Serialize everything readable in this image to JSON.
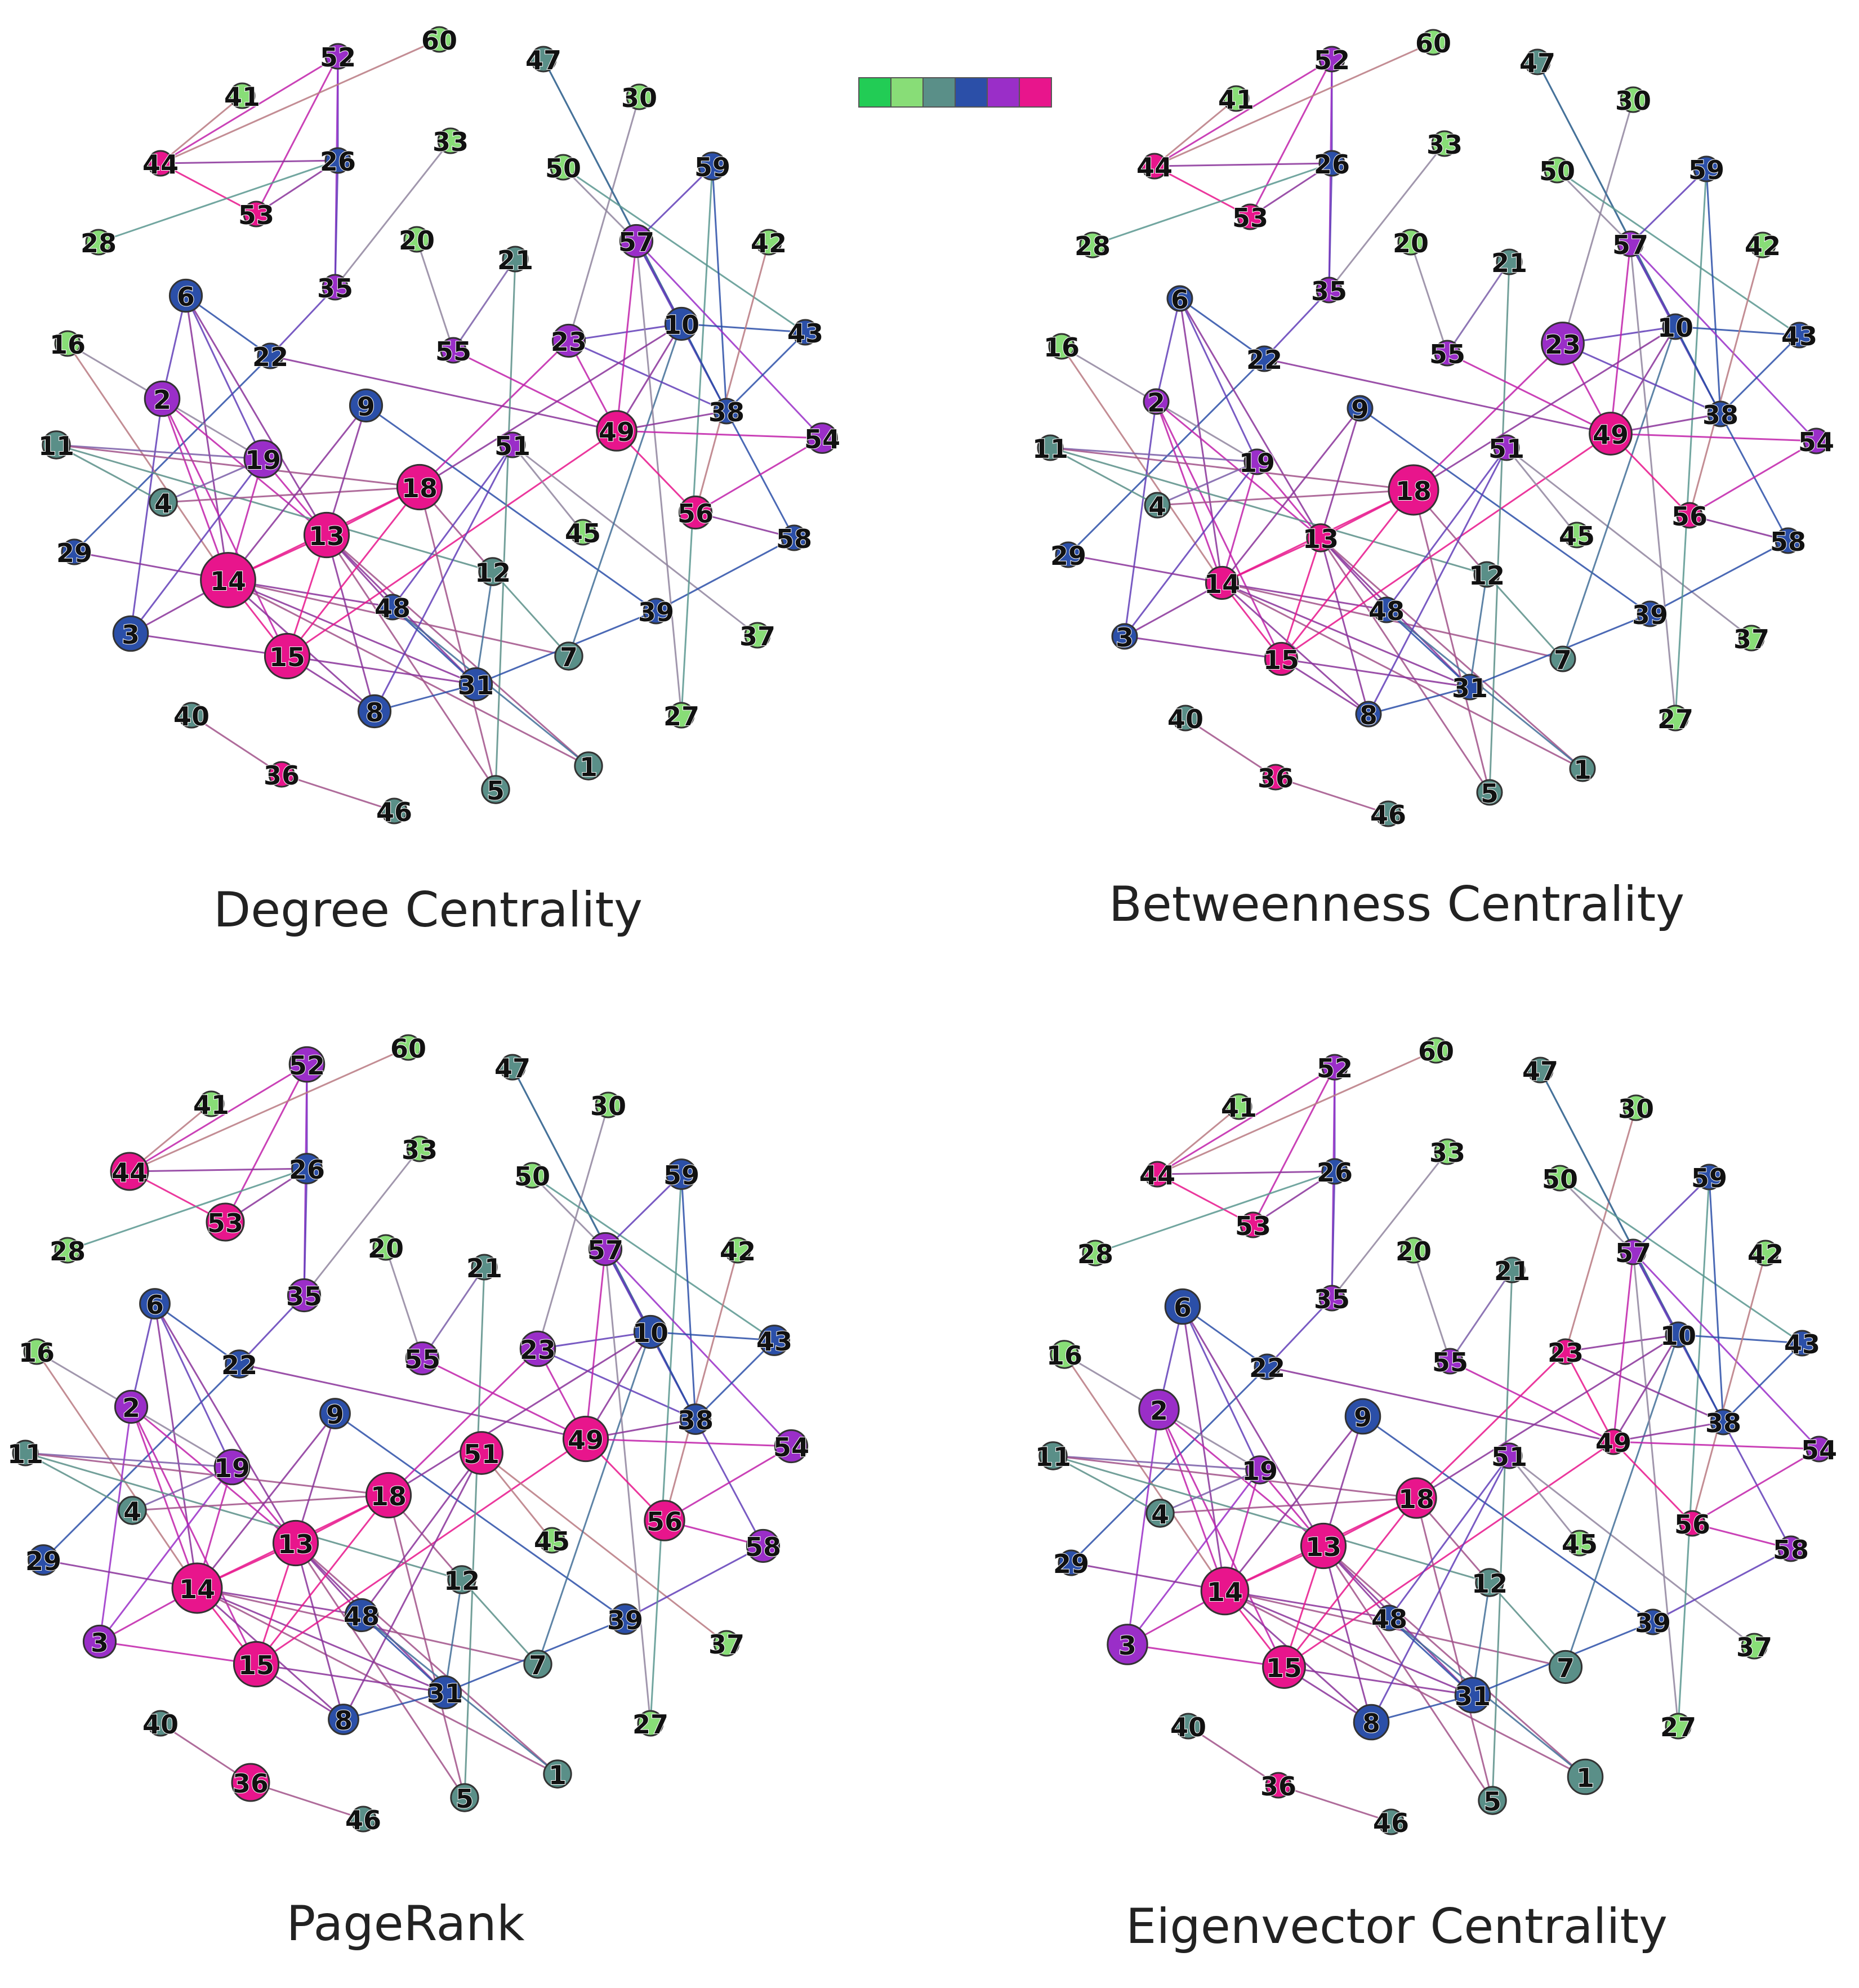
{
  "color_scale": [
    "#22cc55",
    "#88dd77",
    "#5a8f88",
    "#2b4fa8",
    "#9a2ec8",
    "#e8158c"
  ],
  "panels": [
    {
      "caption": "Degree Centrality",
      "node_scores": {
        "13": 5,
        "14": 5,
        "15": 5,
        "18": 5,
        "49": 5,
        "56": 5,
        "36": 5,
        "44": 5,
        "53": 5,
        "52": 4,
        "2": 4,
        "19": 4,
        "23": 4,
        "57": 4,
        "55": 4,
        "51": 4,
        "54": 4,
        "3": 3,
        "10": 3,
        "29": 3,
        "48": 3,
        "58": 3,
        "35": 4,
        "31": 3,
        "8": 3,
        "59": 3,
        "43": 3,
        "9": 3,
        "6": 3,
        "22": 3,
        "26": 3,
        "38": 3,
        "39": 3,
        "12": 2,
        "7": 2,
        "1": 2,
        "5": 2,
        "4": 2,
        "11": 2,
        "45": 1,
        "50": 1,
        "37": 1,
        "27": 1,
        "40": 2,
        "46": 2,
        "28": 1,
        "41": 1,
        "60": 1,
        "47": 2,
        "30": 1,
        "33": 1,
        "20": 1,
        "21": 2,
        "42": 1,
        "16": 1
      },
      "big_nodes": {
        "14": 2.2,
        "13": 1.8,
        "18": 1.8,
        "15": 1.8,
        "49": 1.6,
        "56": 1.3,
        "19": 1.5,
        "2": 1.4,
        "23": 1.3,
        "10": 1.3,
        "57": 1.3,
        "3": 1.4,
        "6": 1.3,
        "9": 1.3,
        "8": 1.3,
        "31": 1.3,
        "54": 1.2,
        "59": 1.1,
        "1": 1.1,
        "7": 1.1,
        "5": 1.1,
        "12": 1.1,
        "4": 1.1,
        "11": 1.1
      }
    },
    {
      "caption": "Betweenness Centrality",
      "node_scores": {
        "18": 5,
        "49": 5,
        "14": 5,
        "15": 5,
        "13": 5,
        "56": 5,
        "36": 5,
        "53": 5,
        "44": 5,
        "23": 4,
        "52": 4,
        "2": 4,
        "57": 4,
        "55": 4,
        "51": 4,
        "19": 4,
        "35": 4,
        "54": 4,
        "10": 3,
        "3": 3,
        "29": 3,
        "48": 3,
        "58": 3,
        "31": 3,
        "8": 3,
        "59": 3,
        "43": 3,
        "9": 3,
        "6": 3,
        "22": 3,
        "26": 3,
        "38": 3,
        "39": 3,
        "12": 2,
        "7": 2,
        "1": 2,
        "5": 2,
        "4": 2,
        "11": 2,
        "45": 1,
        "50": 1,
        "37": 1,
        "27": 1,
        "40": 2,
        "46": 2,
        "28": 1,
        "41": 1,
        "60": 1,
        "47": 2,
        "30": 1,
        "33": 1,
        "20": 1,
        "21": 2,
        "42": 1,
        "16": 1
      },
      "big_nodes": {
        "18": 2.0,
        "23": 1.7,
        "49": 1.7,
        "14": 1.3,
        "15": 1.3,
        "13": 1.1
      }
    },
    {
      "caption": "PageRank",
      "node_scores": {
        "14": 5,
        "13": 5,
        "15": 5,
        "18": 5,
        "49": 5,
        "51": 5,
        "56": 5,
        "36": 5,
        "53": 5,
        "44": 5,
        "52": 4,
        "2": 4,
        "19": 4,
        "23": 4,
        "57": 4,
        "55": 4,
        "54": 4,
        "35": 4,
        "58": 4,
        "3": 4,
        "29": 3,
        "10": 3,
        "48": 3,
        "31": 3,
        "8": 3,
        "59": 3,
        "43": 3,
        "9": 3,
        "6": 3,
        "22": 3,
        "26": 3,
        "38": 3,
        "39": 3,
        "12": 2,
        "7": 2,
        "1": 2,
        "5": 2,
        "4": 2,
        "11": 2,
        "45": 1,
        "50": 1,
        "37": 1,
        "27": 1,
        "40": 2,
        "46": 2,
        "28": 1,
        "41": 1,
        "60": 1,
        "47": 2,
        "30": 1,
        "33": 1,
        "20": 1,
        "21": 2,
        "42": 1,
        "16": 1
      },
      "big_nodes": {
        "14": 2.0,
        "13": 1.8,
        "18": 1.8,
        "15": 1.8,
        "49": 1.8,
        "51": 1.7,
        "56": 1.6,
        "36": 1.5,
        "53": 1.5,
        "44": 1.5,
        "52": 1.4,
        "2": 1.3,
        "19": 1.4,
        "23": 1.4,
        "57": 1.3,
        "55": 1.3,
        "54": 1.3,
        "35": 1.3,
        "58": 1.3,
        "3": 1.3,
        "29": 1.2,
        "10": 1.3,
        "48": 1.3,
        "31": 1.3,
        "8": 1.2,
        "59": 1.2,
        "43": 1.2,
        "9": 1.2,
        "6": 1.2,
        "22": 1.1,
        "26": 1.2,
        "38": 1.2,
        "39": 1.2,
        "12": 1.1,
        "7": 1.1,
        "1": 1.1,
        "5": 1.1,
        "4": 1.1,
        "11": 1.0
      }
    },
    {
      "caption": "Eigenvector Centrality",
      "node_scores": {
        "14": 5,
        "13": 5,
        "15": 5,
        "18": 5,
        "49": 5,
        "56": 5,
        "36": 5,
        "53": 5,
        "44": 5,
        "23": 5,
        "52": 4,
        "2": 4,
        "19": 4,
        "57": 4,
        "55": 4,
        "51": 4,
        "54": 4,
        "35": 4,
        "58": 4,
        "3": 4,
        "29": 3,
        "10": 3,
        "48": 3,
        "31": 3,
        "8": 3,
        "59": 3,
        "43": 3,
        "9": 3,
        "6": 3,
        "22": 3,
        "26": 3,
        "38": 3,
        "39": 3,
        "12": 2,
        "7": 2,
        "1": 2,
        "5": 2,
        "4": 2,
        "11": 2,
        "45": 1,
        "50": 1,
        "37": 1,
        "27": 1,
        "40": 2,
        "46": 2,
        "28": 1,
        "41": 1,
        "60": 1,
        "47": 2,
        "30": 1,
        "33": 1,
        "20": 1,
        "21": 2,
        "42": 1,
        "16": 1
      },
      "big_nodes": {
        "14": 1.9,
        "13": 1.8,
        "15": 1.7,
        "18": 1.6,
        "3": 1.6,
        "2": 1.6,
        "6": 1.4,
        "9": 1.4,
        "8": 1.4,
        "31": 1.4,
        "1": 1.4,
        "7": 1.3,
        "5": 1.1,
        "12": 1.1,
        "16": 1.1,
        "4": 1.1,
        "11": 1.1,
        "19": 1.1
      }
    }
  ],
  "node_ids": [
    "1",
    "2",
    "3",
    "4",
    "5",
    "6",
    "7",
    "8",
    "9",
    "10",
    "11",
    "12",
    "13",
    "14",
    "15",
    "16",
    "18",
    "19",
    "20",
    "21",
    "22",
    "23",
    "26",
    "27",
    "28",
    "29",
    "30",
    "31",
    "33",
    "35",
    "36",
    "37",
    "38",
    "39",
    "40",
    "41",
    "42",
    "43",
    "44",
    "45",
    "46",
    "47",
    "48",
    "49",
    "50",
    "51",
    "52",
    "53",
    "54",
    "55",
    "56",
    "57",
    "58",
    "59",
    "60"
  ],
  "edges": [
    [
      "52",
      "44"
    ],
    [
      "52",
      "53"
    ],
    [
      "52",
      "26"
    ],
    [
      "52",
      "35"
    ],
    [
      "60",
      "44"
    ],
    [
      "41",
      "44"
    ],
    [
      "44",
      "26"
    ],
    [
      "44",
      "53"
    ],
    [
      "53",
      "26"
    ],
    [
      "26",
      "35"
    ],
    [
      "28",
      "26"
    ],
    [
      "35",
      "22"
    ],
    [
      "22",
      "29"
    ],
    [
      "33",
      "35"
    ],
    [
      "6",
      "2"
    ],
    [
      "6",
      "19"
    ],
    [
      "6",
      "13"
    ],
    [
      "6",
      "14"
    ],
    [
      "16",
      "14"
    ],
    [
      "16",
      "19"
    ],
    [
      "2",
      "3"
    ],
    [
      "2",
      "14"
    ],
    [
      "2",
      "15"
    ],
    [
      "2",
      "13"
    ],
    [
      "11",
      "19"
    ],
    [
      "11",
      "4"
    ],
    [
      "11",
      "18"
    ],
    [
      "11",
      "12"
    ],
    [
      "19",
      "4"
    ],
    [
      "19",
      "3"
    ],
    [
      "19",
      "14"
    ],
    [
      "19",
      "13"
    ],
    [
      "4",
      "18"
    ],
    [
      "29",
      "14"
    ],
    [
      "9",
      "14"
    ],
    [
      "9",
      "13"
    ],
    [
      "9",
      "39"
    ],
    [
      "3",
      "14"
    ],
    [
      "3",
      "15"
    ],
    [
      "14",
      "13"
    ],
    [
      "14",
      "15"
    ],
    [
      "14",
      "8"
    ],
    [
      "14",
      "31"
    ],
    [
      "14",
      "48"
    ],
    [
      "14",
      "7"
    ],
    [
      "14",
      "1"
    ],
    [
      "14",
      "18"
    ],
    [
      "13",
      "15"
    ],
    [
      "13",
      "18"
    ],
    [
      "13",
      "48"
    ],
    [
      "13",
      "31"
    ],
    [
      "13",
      "8"
    ],
    [
      "13",
      "5"
    ],
    [
      "13",
      "1"
    ],
    [
      "15",
      "31"
    ],
    [
      "15",
      "8"
    ],
    [
      "15",
      "18"
    ],
    [
      "15",
      "49"
    ],
    [
      "18",
      "23"
    ],
    [
      "18",
      "5"
    ],
    [
      "18",
      "12"
    ],
    [
      "22",
      "49"
    ],
    [
      "22",
      "6"
    ],
    [
      "20",
      "55"
    ],
    [
      "21",
      "55"
    ],
    [
      "21",
      "5"
    ],
    [
      "55",
      "49"
    ],
    [
      "51",
      "45"
    ],
    [
      "51",
      "37"
    ],
    [
      "51",
      "48"
    ],
    [
      "51",
      "8"
    ],
    [
      "48",
      "31"
    ],
    [
      "48",
      "1"
    ],
    [
      "12",
      "31"
    ],
    [
      "12",
      "7"
    ],
    [
      "31",
      "39"
    ],
    [
      "31",
      "8"
    ],
    [
      "39",
      "58"
    ],
    [
      "7",
      "10"
    ],
    [
      "23",
      "10"
    ],
    [
      "23",
      "49"
    ],
    [
      "23",
      "30"
    ],
    [
      "23",
      "38"
    ],
    [
      "47",
      "10"
    ],
    [
      "47",
      "38"
    ],
    [
      "50",
      "43"
    ],
    [
      "50",
      "57"
    ],
    [
      "59",
      "57"
    ],
    [
      "59",
      "38"
    ],
    [
      "59",
      "27"
    ],
    [
      "57",
      "49"
    ],
    [
      "57",
      "10"
    ],
    [
      "57",
      "54"
    ],
    [
      "57",
      "27"
    ],
    [
      "57",
      "38"
    ],
    [
      "10",
      "43"
    ],
    [
      "10",
      "49"
    ],
    [
      "10",
      "18"
    ],
    [
      "10",
      "38"
    ],
    [
      "42",
      "56"
    ],
    [
      "49",
      "38"
    ],
    [
      "49",
      "56"
    ],
    [
      "49",
      "54"
    ],
    [
      "38",
      "58"
    ],
    [
      "38",
      "43"
    ],
    [
      "56",
      "54"
    ],
    [
      "56",
      "58"
    ],
    [
      "40",
      "36"
    ],
    [
      "36",
      "46"
    ]
  ]
}
